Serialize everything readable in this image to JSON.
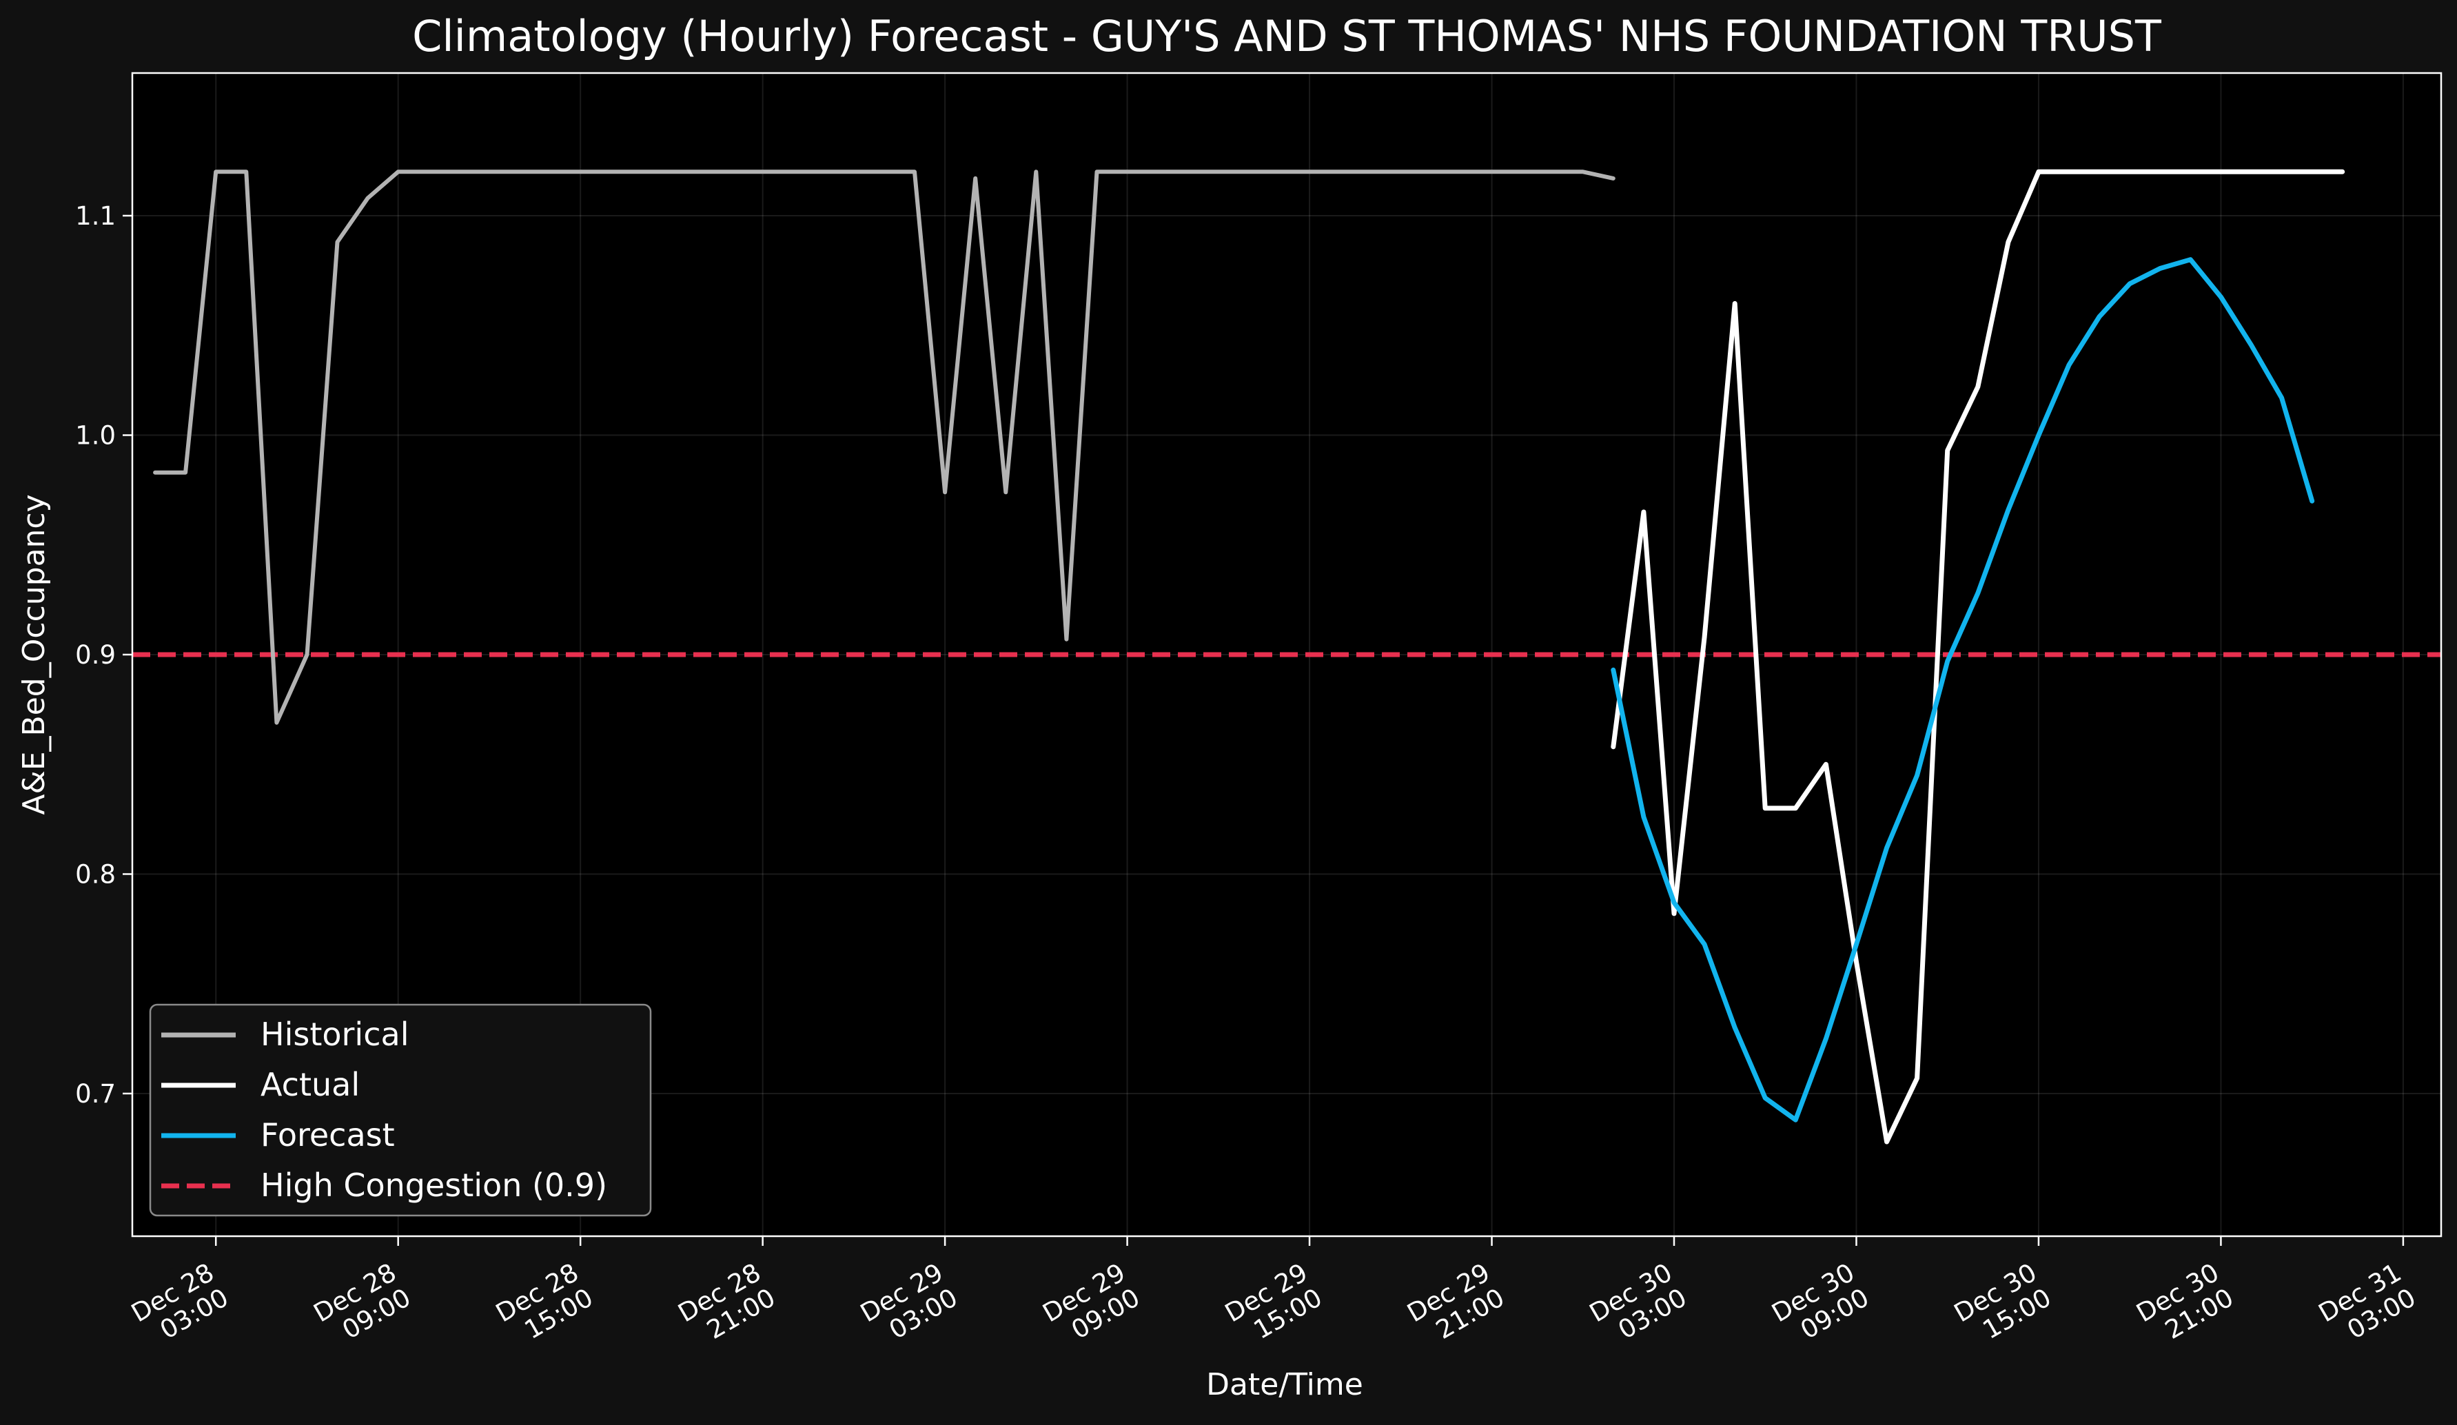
{
  "chart_data": {
    "type": "line",
    "title": "Climatology (Hourly) Forecast - GUY'S AND ST THOMAS' NHS FOUNDATION TRUST",
    "xlabel": "Date/Time",
    "ylabel": "A&E_Bed_Occupancy",
    "xlim_hours": [
      -2.75,
      73.25
    ],
    "ylim": [
      0.635,
      1.165
    ],
    "grid": true,
    "x_ticks": [
      {
        "hour": 0,
        "line1": "Dec 28",
        "line2": "03:00"
      },
      {
        "hour": 6,
        "line1": "Dec 28",
        "line2": "09:00"
      },
      {
        "hour": 12,
        "line1": "Dec 28",
        "line2": "15:00"
      },
      {
        "hour": 18,
        "line1": "Dec 28",
        "line2": "21:00"
      },
      {
        "hour": 24,
        "line1": "Dec 29",
        "line2": "03:00"
      },
      {
        "hour": 30,
        "line1": "Dec 29",
        "line2": "09:00"
      },
      {
        "hour": 36,
        "line1": "Dec 29",
        "line2": "15:00"
      },
      {
        "hour": 42,
        "line1": "Dec 29",
        "line2": "21:00"
      },
      {
        "hour": 48,
        "line1": "Dec 30",
        "line2": "03:00"
      },
      {
        "hour": 54,
        "line1": "Dec 30",
        "line2": "09:00"
      },
      {
        "hour": 60,
        "line1": "Dec 30",
        "line2": "15:00"
      },
      {
        "hour": 66,
        "line1": "Dec 30",
        "line2": "21:00"
      },
      {
        "hour": 72,
        "line1": "Dec 31",
        "line2": "03:00"
      }
    ],
    "y_ticks": [
      {
        "value": 0.7,
        "label": "0.7"
      },
      {
        "value": 0.8,
        "label": "0.8"
      },
      {
        "value": 0.9,
        "label": "0.9"
      },
      {
        "value": 1.0,
        "label": "1.0"
      },
      {
        "value": 1.1,
        "label": "1.1"
      }
    ],
    "series": [
      {
        "name": "Historical",
        "color": "#b3b3b3",
        "x_start_hour": -2,
        "x_step_hours": 1,
        "values": [
          0.983,
          0.983,
          1.12,
          1.12,
          0.869,
          0.9,
          1.088,
          1.108,
          1.12,
          1.12,
          1.12,
          1.12,
          1.12,
          1.12,
          1.12,
          1.12,
          1.12,
          1.12,
          1.12,
          1.12,
          1.12,
          1.12,
          1.12,
          1.12,
          1.12,
          1.12,
          0.974,
          1.117,
          0.974,
          1.12,
          0.907,
          1.12,
          1.12,
          1.12,
          1.12,
          1.12,
          1.12,
          1.12,
          1.12,
          1.12,
          1.12,
          1.12,
          1.12,
          1.12,
          1.12,
          1.12,
          1.12,
          1.12,
          1.117
        ]
      },
      {
        "name": "Actual",
        "color": "#ffffff",
        "x_start_hour": 46,
        "x_step_hours": 1,
        "values": [
          0.858,
          0.965,
          0.782,
          0.908,
          1.06,
          0.83,
          0.83,
          0.85,
          0.76,
          0.678,
          0.707,
          0.993,
          1.022,
          1.088,
          1.12,
          1.12,
          1.12,
          1.12,
          1.12,
          1.12,
          1.12,
          1.12,
          1.12,
          1.12,
          1.12
        ]
      },
      {
        "name": "Forecast",
        "color": "#12b4ee",
        "x_start_hour": 46,
        "x_step_hours": 1,
        "values": [
          0.893,
          0.826,
          0.787,
          0.768,
          0.73,
          0.698,
          0.688,
          0.725,
          0.768,
          0.812,
          0.845,
          0.897,
          0.928,
          0.966,
          1.0,
          1.032,
          1.054,
          1.069,
          1.076,
          1.08,
          1.063,
          1.041,
          1.017,
          0.97
        ]
      }
    ],
    "threshold": {
      "name": "High Congestion (0.9)",
      "value": 0.9,
      "color": "#e8304f"
    },
    "legend_position": "lower-left"
  }
}
